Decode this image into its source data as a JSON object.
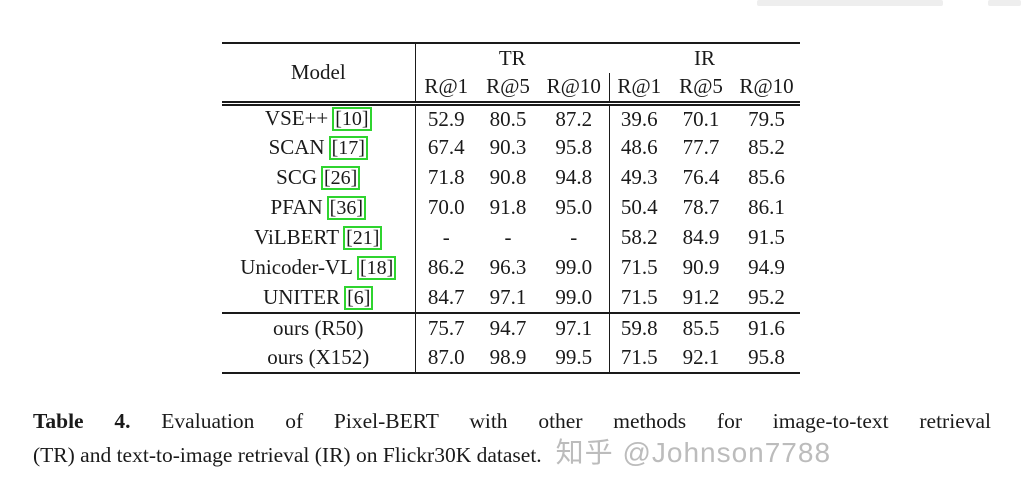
{
  "table": {
    "header": {
      "model_label": "Model",
      "groups": [
        {
          "label": "TR"
        },
        {
          "label": "IR"
        }
      ],
      "sub_headers": [
        "R@1",
        "R@5",
        "R@10",
        "R@1",
        "R@5",
        "R@10"
      ]
    },
    "rows": [
      {
        "model": "VSE++",
        "cite": "[10]",
        "vals": [
          "52.9",
          "80.5",
          "87.2",
          "39.6",
          "70.1",
          "79.5"
        ],
        "bold": [
          false,
          false,
          false,
          false,
          false,
          false
        ],
        "rule_above": false
      },
      {
        "model": "SCAN",
        "cite": "[17]",
        "vals": [
          "67.4",
          "90.3",
          "95.8",
          "48.6",
          "77.7",
          "85.2"
        ],
        "bold": [
          false,
          false,
          false,
          false,
          false,
          false
        ],
        "rule_above": false
      },
      {
        "model": "SCG",
        "cite": "[26]",
        "vals": [
          "71.8",
          "90.8",
          "94.8",
          "49.3",
          "76.4",
          "85.6"
        ],
        "bold": [
          false,
          false,
          false,
          false,
          false,
          false
        ],
        "rule_above": false
      },
      {
        "model": "PFAN",
        "cite": "[36]",
        "vals": [
          "70.0",
          "91.8",
          "95.0",
          "50.4",
          "78.7",
          "86.1"
        ],
        "bold": [
          false,
          false,
          false,
          false,
          false,
          false
        ],
        "rule_above": false
      },
      {
        "model": "ViLBERT",
        "cite": "[21]",
        "vals": [
          "-",
          "-",
          "-",
          "58.2",
          "84.9",
          "91.5"
        ],
        "bold": [
          false,
          false,
          false,
          false,
          false,
          false
        ],
        "rule_above": false
      },
      {
        "model": "Unicoder-VL",
        "cite": "[18]",
        "vals": [
          "86.2",
          "96.3",
          "99.0",
          "71.5",
          "90.9",
          "94.9"
        ],
        "bold": [
          false,
          false,
          false,
          true,
          false,
          false
        ],
        "rule_above": false
      },
      {
        "model": "UNITER",
        "cite": "[6]",
        "vals": [
          "84.7",
          "97.1",
          "99.0",
          "71.5",
          "91.2",
          "95.2"
        ],
        "bold": [
          false,
          false,
          false,
          true,
          false,
          false
        ],
        "rule_above": false
      },
      {
        "model": "ours (R50)",
        "cite": null,
        "vals": [
          "75.7",
          "94.7",
          "97.1",
          "59.8",
          "85.5",
          "91.6"
        ],
        "bold": [
          false,
          false,
          false,
          false,
          false,
          false
        ],
        "rule_above": true
      },
      {
        "model": "ours (X152)",
        "cite": null,
        "vals": [
          "87.0",
          "98.9",
          "99.5",
          "71.5",
          "92.1",
          "95.8"
        ],
        "bold": [
          true,
          true,
          true,
          true,
          true,
          true
        ],
        "rule_above": false
      }
    ]
  },
  "caption": {
    "label": "Table 4.",
    "line1_rest": "Evaluation of Pixel-BERT with other methods for image-to-text retrieval",
    "line2": "(TR) and text-to-image retrieval (IR) on Flickr30K dataset.",
    "watermark": "知乎 @Johnson7788"
  },
  "colors": {
    "citation_box": "#2fd42f",
    "watermark_text": "#bcbcbc",
    "text": "#1a1a1a"
  }
}
